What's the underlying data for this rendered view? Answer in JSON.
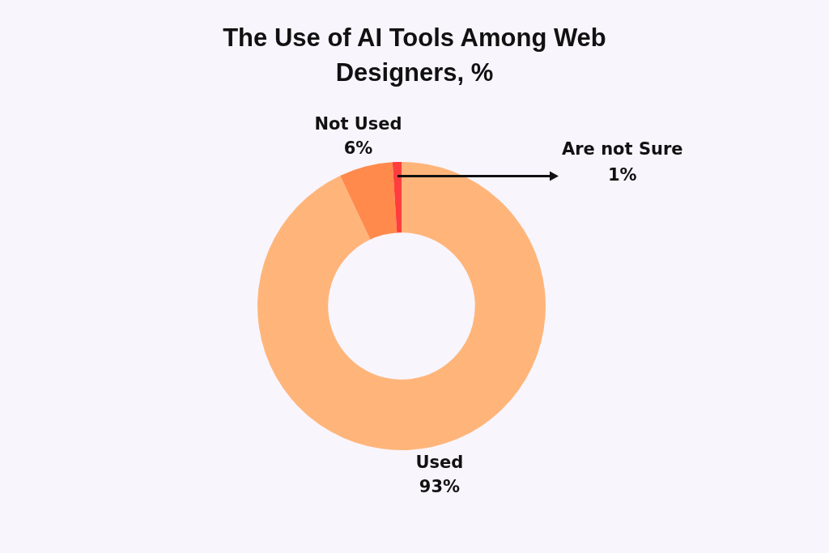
{
  "chart_data": {
    "type": "donut",
    "title": "The Use of AI Tools Among Web Designers, %",
    "categories": [
      "Used",
      "Not Used",
      "Are not Sure"
    ],
    "values": [
      93,
      6,
      1
    ],
    "colors": [
      "#ffb57a",
      "#ff8a4c",
      "#ff3d3d"
    ],
    "value_labels": [
      "93%",
      "6%",
      "1%"
    ],
    "legend": false
  }
}
